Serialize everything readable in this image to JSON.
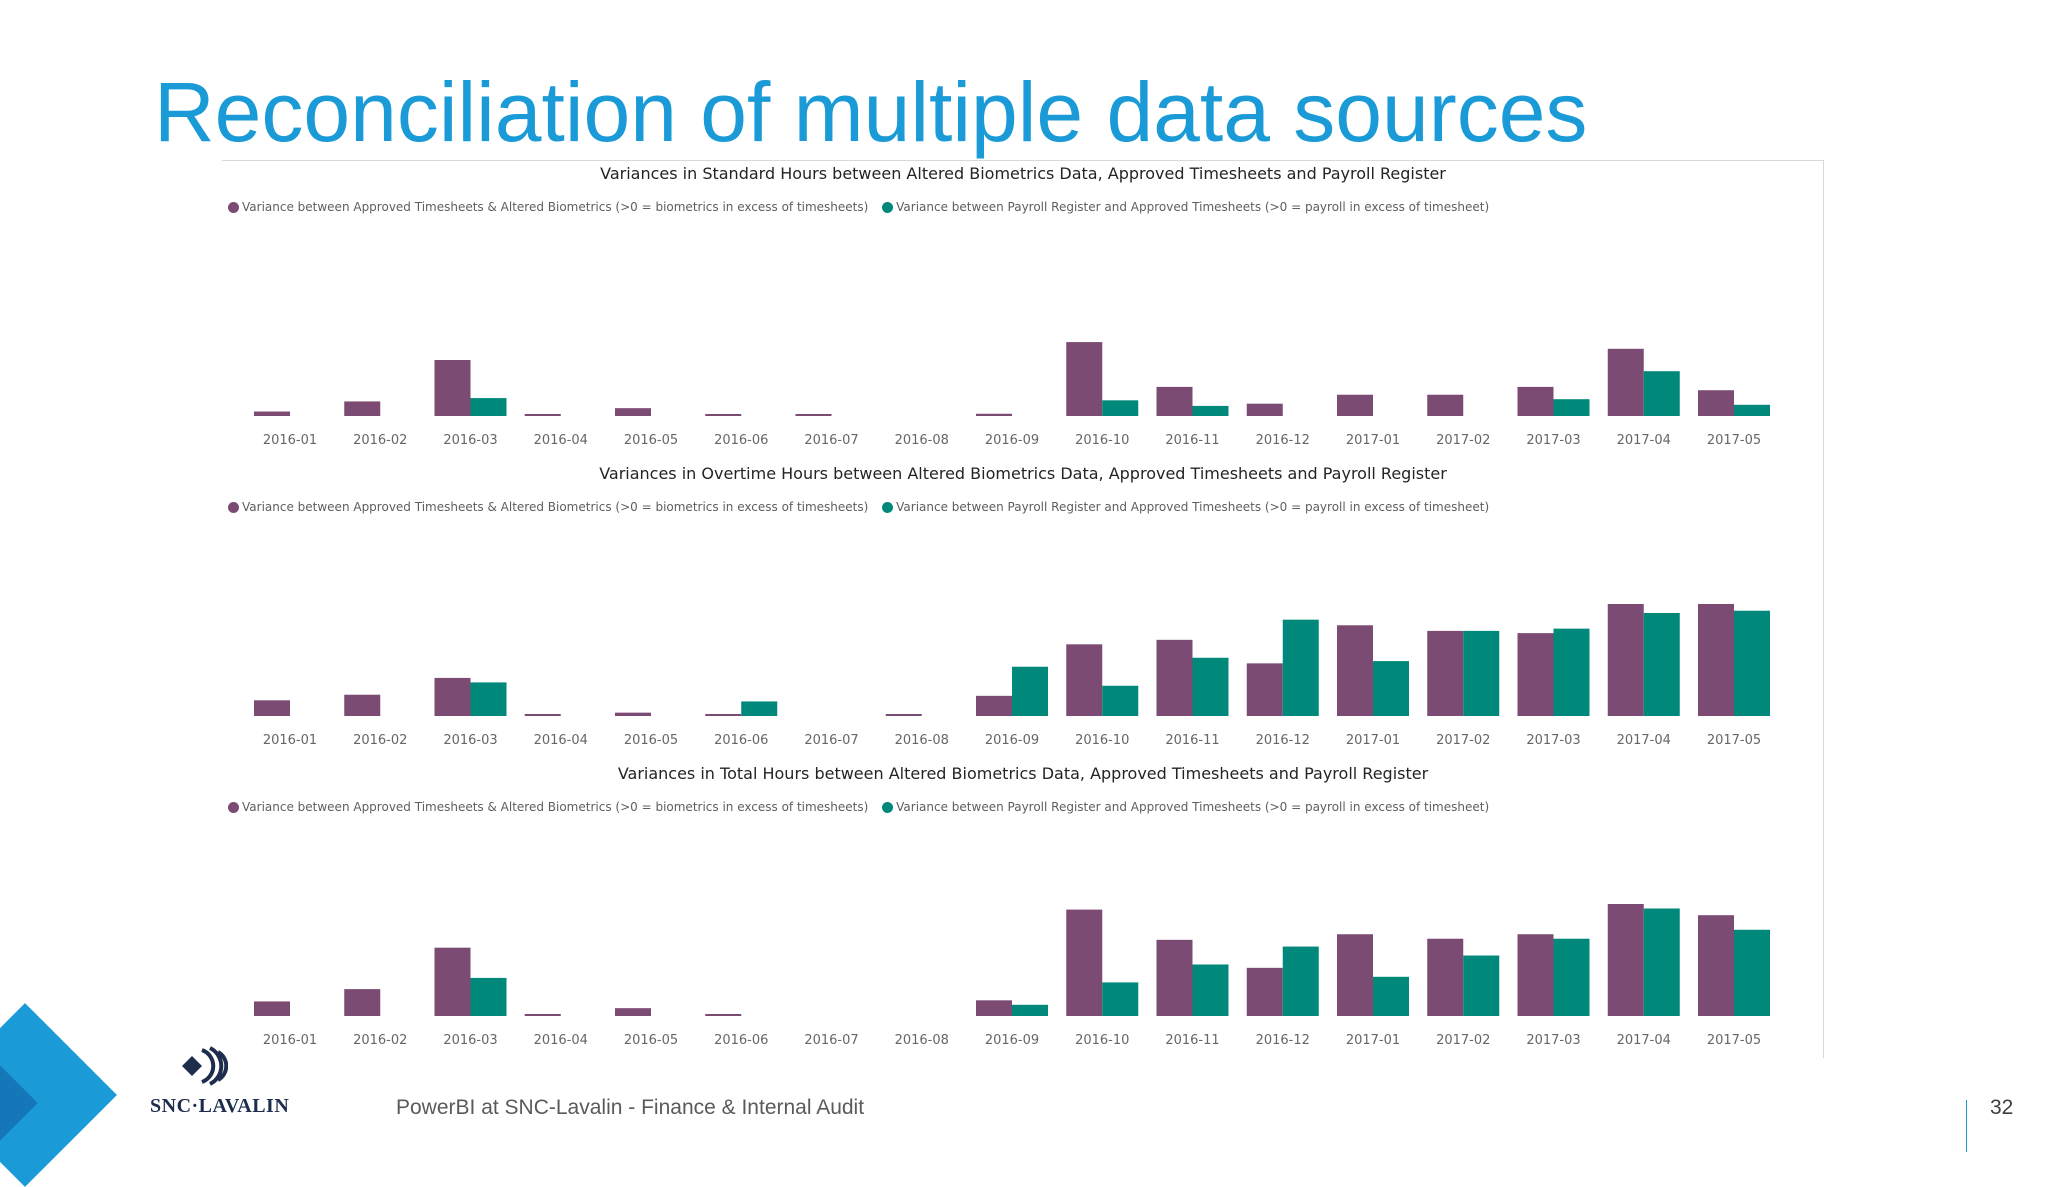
{
  "slide": {
    "title": "Reconciliation of multiple data sources",
    "footer": "PowerBI at SNC-Lavalin -  Finance & Internal Audit",
    "page_number": "32",
    "brand": "SNC·LAVALIN"
  },
  "colors": {
    "title": "#1a9ad6",
    "series_biometrics": "#7b4b73",
    "series_payroll": "#00897b",
    "axis_text": "#666666"
  },
  "legend": {
    "series_1": "Variance between Approved Timesheets & Altered Biometrics (>0 = biometrics in excess of timesheets)",
    "series_2": "Variance between Payroll Register and Approved Timesheets (>0 = payroll in excess of timesheet)"
  },
  "chart_data": [
    {
      "type": "bar",
      "title": "Variances in Standard Hours between Altered Biometrics Data, Approved Timesheets and Payroll Register",
      "categories": [
        "2016-01",
        "2016-02",
        "2016-03",
        "2016-04",
        "2016-05",
        "2016-06",
        "2016-07",
        "2016-08",
        "2016-09",
        "2016-10",
        "2016-11",
        "2016-12",
        "2017-01",
        "2017-02",
        "2017-03",
        "2017-04",
        "2017-05"
      ],
      "series": [
        {
          "name": "Variance between Approved Timesheets & Altered Biometrics (>0 = biometrics in excess of timesheets)",
          "color": "#7b4b73",
          "values": [
            4,
            13,
            50,
            1,
            7,
            1,
            1,
            0,
            2,
            66,
            26,
            11,
            19,
            19,
            26,
            60,
            23
          ]
        },
        {
          "name": "Variance between Payroll Register and Approved Timesheets (>0 = payroll in excess of timesheet)",
          "color": "#00897b",
          "values": [
            0,
            0,
            16,
            0,
            0,
            0,
            0,
            0,
            0,
            14,
            9,
            0,
            0,
            0,
            15,
            40,
            10
          ]
        }
      ],
      "ylim": [
        0,
        100
      ],
      "grid": false,
      "legend_position": "top-left"
    },
    {
      "type": "bar",
      "title": "Variances in Overtime Hours between Altered Biometrics Data, Approved Timesheets and Payroll Register",
      "categories": [
        "2016-01",
        "2016-02",
        "2016-03",
        "2016-04",
        "2016-05",
        "2016-06",
        "2016-07",
        "2016-08",
        "2016-09",
        "2016-10",
        "2016-11",
        "2016-12",
        "2017-01",
        "2017-02",
        "2017-03",
        "2017-04",
        "2017-05"
      ],
      "series": [
        {
          "name": "Variance between Approved Timesheets & Altered Biometrics (>0 = biometrics in excess of timesheets)",
          "color": "#7b4b73",
          "values": [
            14,
            19,
            34,
            1,
            3,
            1,
            0,
            1,
            18,
            64,
            68,
            47,
            81,
            76,
            74,
            100,
            100
          ]
        },
        {
          "name": "Variance between Payroll Register and Approved Timesheets (>0 = payroll in excess of timesheet)",
          "color": "#00897b",
          "values": [
            0,
            0,
            30,
            0,
            0,
            13,
            0,
            0,
            44,
            27,
            52,
            86,
            49,
            76,
            78,
            92,
            94
          ]
        }
      ],
      "ylim": [
        0,
        100
      ],
      "grid": false,
      "legend_position": "top-left"
    },
    {
      "type": "bar",
      "title": "Variances in Total Hours between Altered Biometrics Data, Approved Timesheets and Payroll Register",
      "categories": [
        "2016-01",
        "2016-02",
        "2016-03",
        "2016-04",
        "2016-05",
        "2016-06",
        "2016-07",
        "2016-08",
        "2016-09",
        "2016-10",
        "2016-11",
        "2016-12",
        "2017-01",
        "2017-02",
        "2017-03",
        "2017-04",
        "2017-05"
      ],
      "series": [
        {
          "name": "Variance between Approved Timesheets & Altered Biometrics (>0 = biometrics in excess of timesheets)",
          "color": "#7b4b73",
          "values": [
            13,
            24,
            61,
            1,
            7,
            1,
            0,
            0,
            14,
            95,
            68,
            43,
            73,
            69,
            73,
            100,
            90
          ]
        },
        {
          "name": "Variance between Payroll Register and Approved Timesheets (>0 = payroll in excess of timesheet)",
          "color": "#00897b",
          "values": [
            0,
            0,
            34,
            0,
            0,
            0,
            0,
            0,
            10,
            30,
            46,
            62,
            35,
            54,
            69,
            96,
            77
          ]
        }
      ],
      "ylim": [
        0,
        100
      ],
      "grid": false,
      "legend_position": "top-left"
    }
  ]
}
